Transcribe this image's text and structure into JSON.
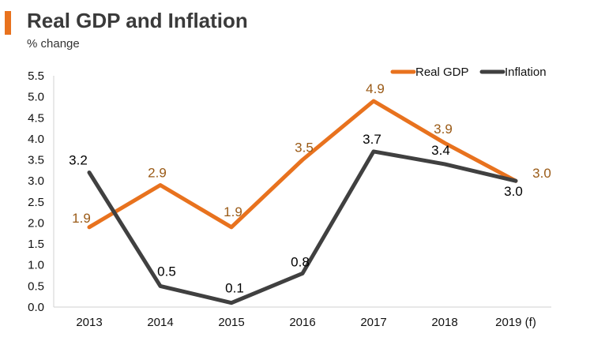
{
  "header": {
    "title": "Real GDP and Inflation",
    "subtitle": "% change"
  },
  "chart_data": {
    "type": "line",
    "title": "Real GDP and Inflation",
    "ylabel": "% change",
    "xlabel": "",
    "categories": [
      "2013",
      "2014",
      "2015",
      "2016",
      "2017",
      "2018",
      "2019 (f)"
    ],
    "ylim": [
      0.0,
      5.5
    ],
    "yticks": [
      "0.0",
      "0.5",
      "1.0",
      "1.5",
      "2.0",
      "2.5",
      "3.0",
      "3.5",
      "4.0",
      "4.5",
      "5.0",
      "5.5"
    ],
    "grid": false,
    "legend_position": "top-right",
    "series": [
      {
        "name": "Real GDP",
        "color": "#e8721e",
        "label_color": "#9a5a16",
        "values": [
          1.9,
          2.9,
          1.9,
          3.5,
          4.9,
          3.9,
          3.0
        ],
        "labels": [
          "1.9",
          "2.9",
          "1.9",
          "3.5",
          "4.9",
          "3.9",
          "3.0"
        ]
      },
      {
        "name": "Inflation",
        "color": "#404040",
        "label_color": "#000000",
        "values": [
          3.2,
          0.5,
          0.1,
          0.8,
          3.7,
          3.4,
          3.0
        ],
        "labels": [
          "3.2",
          "0.5",
          "0.1",
          "0.8",
          "3.7",
          "3.4",
          "3.0"
        ]
      }
    ]
  }
}
